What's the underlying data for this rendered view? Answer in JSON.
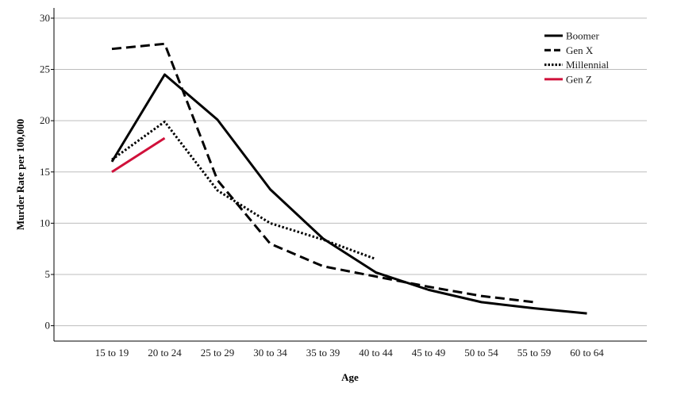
{
  "chart_data": {
    "type": "line",
    "title": "",
    "xlabel": "Age",
    "ylabel": "Murder Rate per 100,000",
    "categories": [
      "15 to 19",
      "20 to 24",
      "25 to 29",
      "30 to 34",
      "35 to 39",
      "40 to 44",
      "45 to 49",
      "50 to 54",
      "55 to 59",
      "60 to 64"
    ],
    "ylim": [
      -1.5,
      31
    ],
    "yticks": [
      0,
      5,
      10,
      15,
      20,
      25,
      30
    ],
    "grid": "horizontal",
    "legend_position": "top-right",
    "series": [
      {
        "name": "Boomer",
        "color": "#000000",
        "style": "solid",
        "values": [
          16.0,
          24.5,
          20.1,
          13.3,
          8.5,
          5.2,
          3.5,
          2.3,
          1.7,
          1.2
        ]
      },
      {
        "name": "Gen X",
        "color": "#000000",
        "style": "dashed",
        "values": [
          27.0,
          27.5,
          14.2,
          8.0,
          5.8,
          4.8,
          3.8,
          2.9,
          2.3,
          null
        ]
      },
      {
        "name": "Millennial",
        "color": "#000000",
        "style": "dotted",
        "values": [
          16.2,
          19.9,
          13.2,
          10.0,
          8.4,
          6.5,
          null,
          null,
          null,
          null
        ]
      },
      {
        "name": "Gen Z",
        "color": "#d0103a",
        "style": "solid",
        "values": [
          15.0,
          18.3,
          null,
          null,
          null,
          null,
          null,
          null,
          null,
          null
        ]
      }
    ]
  }
}
